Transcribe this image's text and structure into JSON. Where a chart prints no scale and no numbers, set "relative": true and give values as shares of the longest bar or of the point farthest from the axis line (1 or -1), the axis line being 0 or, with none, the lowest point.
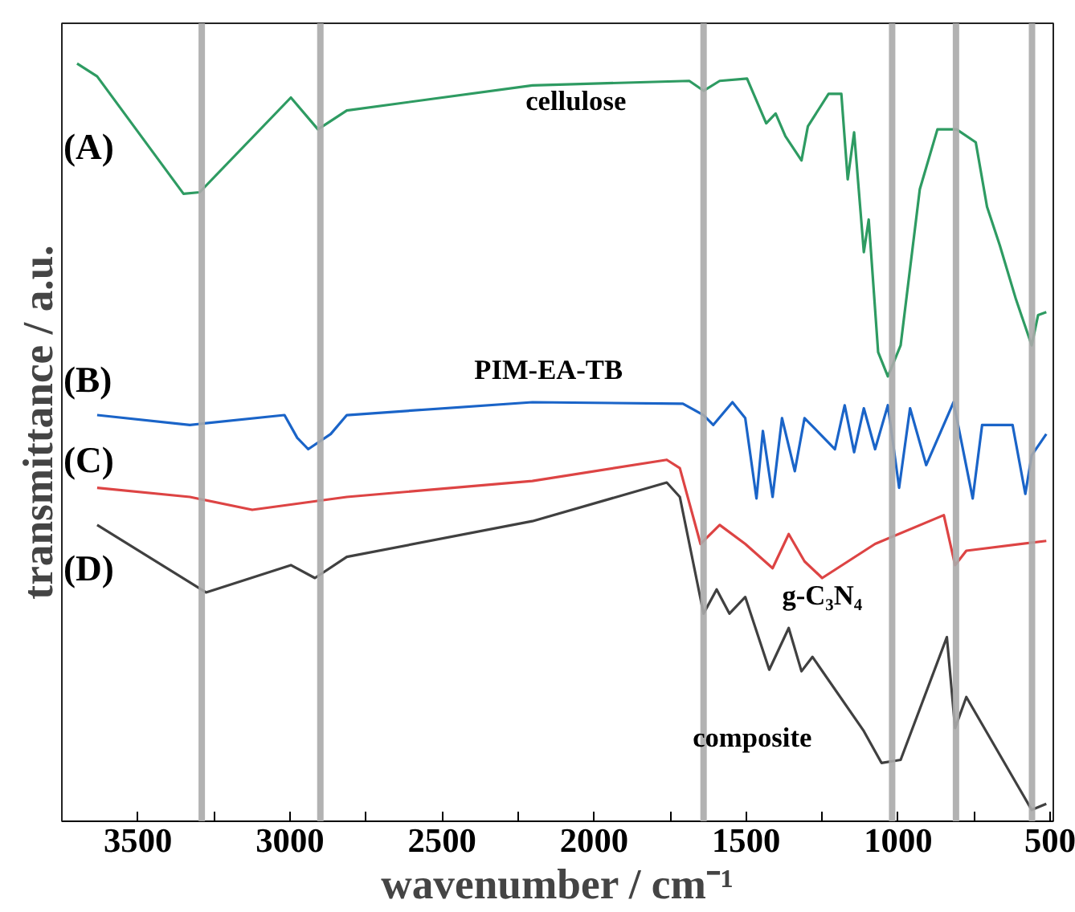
{
  "chart_data": {
    "type": "line",
    "relative": true,
    "xlabel": "wavenumber / cm⁻¹",
    "ylabel": "transmittance / a.u.",
    "xlim": [
      3750,
      490
    ],
    "xticks": [
      3500,
      {
        "value": 3250,
        "label": null
      },
      3000,
      {
        "value": 2750,
        "label": null
      },
      2500,
      {
        "value": 2250,
        "label": null
      },
      2000,
      {
        "value": 1750,
        "label": null
      },
      1500,
      {
        "value": 1250,
        "label": null
      },
      1000,
      {
        "value": 750,
        "label": null
      },
      500
    ],
    "grid": false,
    "legend": false,
    "marker": "none",
    "line_style": "solid",
    "annotations": [
      "(A)",
      "(B)",
      "(C)",
      "(D)"
    ],
    "ref_lines": [
      {
        "axis": "x",
        "value": 3290,
        "label": null,
        "color": "#aaaaaa"
      },
      {
        "axis": "x",
        "value": 2900,
        "label": null,
        "color": "#aaaaaa"
      },
      {
        "axis": "x",
        "value": 1640,
        "label": null,
        "color": "#aaaaaa"
      },
      {
        "axis": "x",
        "value": 1020,
        "label": null,
        "color": "#aaaaaa"
      },
      {
        "axis": "x",
        "value": 810,
        "label": null,
        "color": "#aaaaaa"
      },
      {
        "axis": "x",
        "value": 560,
        "label": null,
        "color": "#aaaaaa"
      }
    ],
    "series": [
      {
        "name": "cellulose",
        "color": "#2e9b62",
        "x": [
          3700,
          3634,
          3350,
          3297,
          2997,
          2908,
          2813,
          2203,
          1687,
          1640,
          1587,
          1497,
          1434,
          1403,
          1371,
          1318,
          1297,
          1229,
          1187,
          1166,
          1145,
          1113,
          1097,
          1066,
          1034,
          992,
          929,
          871,
          808,
          745,
          708,
          666,
          613,
          561,
          540,
          513
        ],
        "values": [
          1.0,
          0.983,
          0.828,
          0.83,
          0.955,
          0.913,
          0.938,
          0.971,
          0.977,
          0.964,
          0.977,
          0.98,
          0.921,
          0.934,
          0.904,
          0.872,
          0.917,
          0.96,
          0.96,
          0.847,
          0.909,
          0.751,
          0.794,
          0.619,
          0.587,
          0.628,
          0.834,
          0.913,
          0.913,
          0.896,
          0.811,
          0.76,
          0.689,
          0.628,
          0.668,
          0.672
        ]
      },
      {
        "name": "PIM-EA-TB",
        "color": "#1a64c8",
        "x": [
          3634,
          3329,
          3018,
          2976,
          2940,
          2866,
          2813,
          2203,
          1708,
          1640,
          1608,
          1545,
          1503,
          1466,
          1445,
          1413,
          1382,
          1340,
          1308,
          1208,
          1176,
          1145,
          1113,
          1076,
          1034,
          997,
          961,
          908,
          818,
          755,
          724,
          624,
          582,
          561,
          513
        ],
        "values": [
          0.536,
          0.523,
          0.536,
          0.506,
          0.491,
          0.511,
          0.536,
          0.553,
          0.551,
          0.536,
          0.523,
          0.553,
          0.532,
          0.426,
          0.515,
          0.428,
          0.532,
          0.462,
          0.532,
          0.491,
          0.549,
          0.487,
          0.545,
          0.491,
          0.549,
          0.44,
          0.545,
          0.47,
          0.553,
          0.426,
          0.523,
          0.523,
          0.432,
          0.483,
          0.511
        ]
      },
      {
        "name": "g-C₃N₄",
        "color": "#dd4444",
        "x": [
          3634,
          3329,
          3124,
          2813,
          2203,
          1761,
          1718,
          1650,
          1587,
          1503,
          1413,
          1360,
          1308,
          1250,
          1076,
          850,
          813,
          776,
          513
        ],
        "values": [
          0.44,
          0.428,
          0.411,
          0.428,
          0.449,
          0.477,
          0.466,
          0.366,
          0.391,
          0.366,
          0.334,
          0.379,
          0.343,
          0.321,
          0.366,
          0.404,
          0.338,
          0.357,
          0.37
        ]
      },
      {
        "name": "composite",
        "color": "#404040",
        "x": [
          3634,
          3276,
          2997,
          2918,
          2813,
          2203,
          1761,
          1718,
          1640,
          1597,
          1555,
          1503,
          1424,
          1360,
          1318,
          1282,
          1113,
          1055,
          992,
          840,
          813,
          776,
          561,
          513
        ],
        "values": [
          0.391,
          0.302,
          0.338,
          0.321,
          0.349,
          0.396,
          0.447,
          0.428,
          0.274,
          0.306,
          0.274,
          0.296,
          0.2,
          0.255,
          0.198,
          0.217,
          0.119,
          0.077,
          0.081,
          0.243,
          0.123,
          0.164,
          0.015,
          0.023
        ]
      }
    ]
  }
}
